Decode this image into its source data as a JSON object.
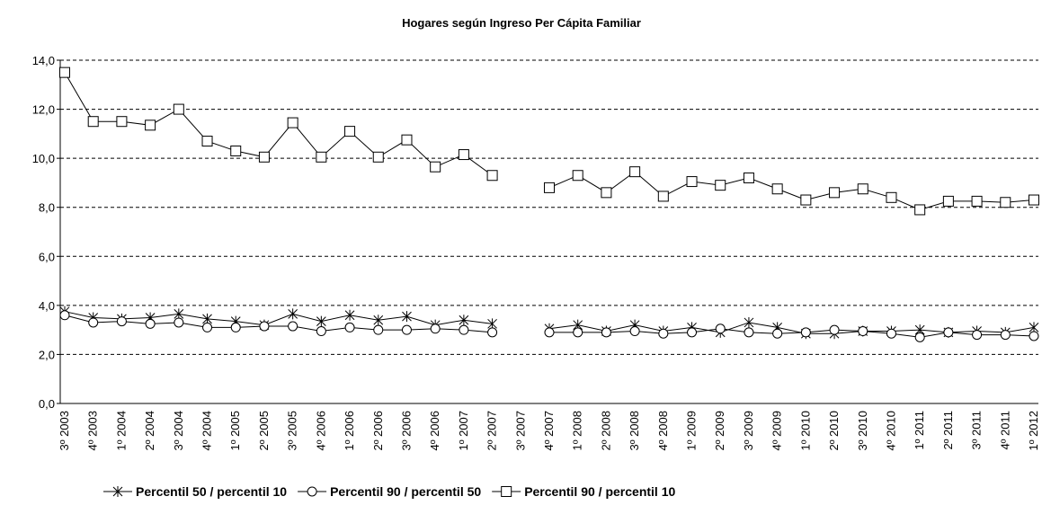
{
  "chart_data": {
    "type": "line",
    "title": "Hogares según Ingreso Per Cápita Familiar",
    "categories": [
      "3º 2003",
      "4º 2003",
      "1º 2004",
      "2º 2004",
      "3º 2004",
      "4º 2004",
      "1º 2005",
      "2º 2005",
      "3º 2005",
      "4º 2006",
      "1º 2006",
      "2º 2006",
      "3º 2006",
      "4º 2006",
      "1º 2007",
      "2º 2007",
      "3º 2007",
      "4º 2007",
      "1º 2008",
      "2º 2008",
      "3º 2008",
      "4º 2008",
      "1º 2009",
      "2º 2009",
      "3º 2009",
      "4º 2009",
      "1º 2010",
      "2º 2010",
      "3º 2010",
      "4º 2010",
      "1º 2011",
      "2º 2011",
      "3º 2011",
      "4º 2011",
      "1º 2012"
    ],
    "series": [
      {
        "name": "Percentil 50 / percentil 10",
        "color": "#000000",
        "marker": "star",
        "values": [
          3.75,
          3.5,
          3.45,
          3.5,
          3.65,
          3.45,
          3.35,
          3.2,
          3.65,
          3.35,
          3.6,
          3.4,
          3.55,
          3.2,
          3.4,
          3.25,
          null,
          3.05,
          3.2,
          2.95,
          3.2,
          2.95,
          3.1,
          2.9,
          3.3,
          3.1,
          2.85,
          2.85,
          2.95,
          2.95,
          3.0,
          2.9,
          2.95,
          2.9,
          3.1
        ]
      },
      {
        "name": "Percentil 90 / percentil 50",
        "color": "#000000",
        "marker": "circle",
        "values": [
          3.6,
          3.3,
          3.35,
          3.25,
          3.3,
          3.1,
          3.1,
          3.15,
          3.15,
          2.95,
          3.1,
          3.0,
          3.0,
          3.05,
          3.0,
          2.9,
          null,
          2.9,
          2.9,
          2.9,
          2.95,
          2.85,
          2.9,
          3.05,
          2.9,
          2.85,
          2.9,
          3.0,
          2.95,
          2.85,
          2.7,
          2.9,
          2.8,
          2.8,
          2.75
        ]
      },
      {
        "name": "Percentil 90 / percentil 10",
        "color": "#000000",
        "marker": "square",
        "values": [
          13.5,
          11.5,
          11.5,
          11.35,
          12.0,
          10.7,
          10.3,
          10.05,
          11.45,
          10.05,
          11.1,
          10.05,
          10.75,
          9.65,
          10.15,
          9.3,
          null,
          8.8,
          9.3,
          8.6,
          9.45,
          8.45,
          9.05,
          8.9,
          9.2,
          8.75,
          8.3,
          8.6,
          8.75,
          8.4,
          7.9,
          8.25,
          8.25,
          8.2,
          8.3
        ]
      }
    ],
    "ylim": [
      0,
      14
    ],
    "yticks": [
      {
        "value": 0,
        "label": "0,0"
      },
      {
        "value": 2,
        "label": "2,0"
      },
      {
        "value": 4,
        "label": "4,0"
      },
      {
        "value": 6,
        "label": "6,0"
      },
      {
        "value": 8,
        "label": "8,0"
      },
      {
        "value": 10,
        "label": "10,0"
      },
      {
        "value": 12,
        "label": "12,0"
      },
      {
        "value": 14,
        "label": "14,0"
      }
    ],
    "grid": true,
    "legend": "bottom"
  }
}
